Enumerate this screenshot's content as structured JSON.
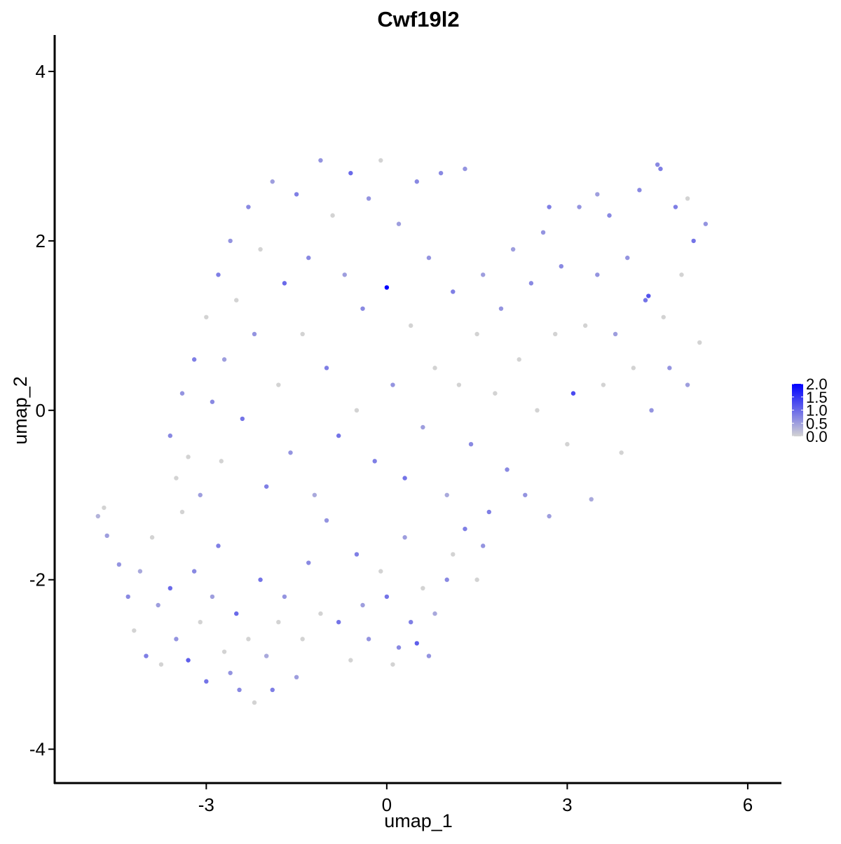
{
  "chart_data": {
    "type": "scatter",
    "title": "Cwf19l2",
    "x_label": "umap_1",
    "y_label": "umap_2",
    "x": [
      -4.8,
      -4.7,
      -4.65,
      -4.45,
      -4.3,
      -4.2,
      -4.1,
      -4.0,
      -3.9,
      -3.8,
      -3.75,
      -3.6,
      -3.5,
      -3.4,
      -3.3,
      -3.2,
      -3.1,
      -3.0,
      -2.9,
      -2.8,
      -2.7,
      -2.6,
      -2.5,
      -2.45,
      -2.3,
      -2.2,
      -2.1,
      -2.0,
      -1.9,
      -1.8,
      -1.7,
      -1.5,
      -1.4,
      -1.3,
      -1.1,
      -1.0,
      -0.8,
      -0.6,
      -0.5,
      -0.4,
      -0.3,
      -0.1,
      0.0,
      0.1,
      0.2,
      0.3,
      0.4,
      0.5,
      0.6,
      0.7,
      0.8,
      1.0,
      1.1,
      1.3,
      1.5,
      1.6,
      -3.6,
      -3.5,
      -3.4,
      -3.3,
      -3.2,
      -3.1,
      -3.0,
      -2.9,
      -2.8,
      -2.75,
      -2.7,
      -2.6,
      -2.5,
      -2.4,
      -2.3,
      -2.2,
      -2.1,
      -2.0,
      -1.9,
      -1.8,
      -1.7,
      -1.6,
      -1.5,
      -1.4,
      -1.3,
      -1.2,
      -1.1,
      -1.0,
      -0.9,
      -0.8,
      -0.7,
      -0.6,
      -0.5,
      -0.4,
      -0.3,
      -0.2,
      -0.1,
      0.0,
      0.1,
      0.2,
      0.3,
      0.4,
      0.5,
      0.6,
      0.7,
      0.8,
      0.9,
      1.0,
      1.1,
      1.2,
      1.3,
      1.4,
      1.5,
      1.6,
      1.7,
      1.8,
      1.9,
      2.0,
      2.1,
      2.2,
      2.3,
      2.4,
      2.5,
      2.6,
      2.7,
      2.8,
      2.9,
      3.0,
      3.1,
      3.2,
      3.3,
      3.4,
      3.5,
      3.6,
      3.7,
      3.8,
      3.9,
      4.0,
      4.1,
      4.2,
      4.3,
      4.4,
      4.5,
      4.6,
      4.7,
      4.8,
      4.9,
      5.0,
      5.1,
      5.2,
      5.3,
      4.35,
      4.55,
      5.0,
      3.5,
      2.7
    ],
    "y": [
      -1.25,
      -1.15,
      -1.48,
      -1.82,
      -2.2,
      -2.6,
      -1.9,
      -2.9,
      -1.5,
      -2.3,
      -3.0,
      -2.1,
      -2.7,
      -1.2,
      -2.95,
      -1.9,
      -2.5,
      -3.2,
      -2.2,
      -1.6,
      -2.85,
      -3.1,
      -2.4,
      -3.3,
      -2.7,
      -3.45,
      -2.0,
      -2.9,
      -3.3,
      -2.5,
      -2.2,
      -3.15,
      -2.7,
      -1.8,
      -2.4,
      -1.3,
      -2.5,
      -2.95,
      -1.7,
      -2.3,
      -2.7,
      -1.9,
      -2.2,
      -3.0,
      -2.8,
      -1.5,
      -2.5,
      -2.75,
      -2.1,
      -2.9,
      -2.4,
      -2.0,
      -1.7,
      -1.4,
      -2.0,
      -1.6,
      -0.3,
      -0.8,
      0.2,
      -0.55,
      0.6,
      -1.0,
      1.1,
      0.1,
      1.6,
      -0.6,
      0.6,
      2.0,
      1.3,
      -0.1,
      2.4,
      0.9,
      1.9,
      -0.9,
      2.7,
      0.3,
      1.5,
      -0.5,
      2.55,
      0.9,
      1.8,
      -1.0,
      2.95,
      0.5,
      2.3,
      -0.3,
      1.6,
      2.8,
      0.0,
      1.2,
      2.5,
      -0.6,
      2.95,
      1.45,
      0.3,
      2.2,
      -0.8,
      1.0,
      2.7,
      -0.2,
      1.8,
      0.5,
      2.8,
      -1.0,
      1.4,
      0.3,
      2.85,
      -0.4,
      0.9,
      1.6,
      -1.2,
      0.2,
      1.2,
      -0.7,
      1.9,
      0.6,
      -1.0,
      1.5,
      0.0,
      2.1,
      -1.25,
      0.9,
      1.7,
      -0.4,
      0.2,
      2.4,
      1.0,
      -1.05,
      1.6,
      0.3,
      2.3,
      0.9,
      -0.5,
      1.8,
      0.5,
      2.6,
      1.3,
      0.0,
      2.9,
      1.1,
      0.5,
      2.4,
      1.6,
      0.3,
      2.0,
      0.8,
      2.2,
      1.35,
      2.85,
      2.5,
      2.55,
      2.4
    ],
    "values": [
      0.3,
      0,
      0.5,
      0.6,
      0.7,
      0,
      0.4,
      0.8,
      0,
      0.5,
      0,
      1.0,
      0.6,
      0,
      1.1,
      0.7,
      0,
      0.9,
      0.5,
      0.8,
      0,
      0.6,
      1.0,
      0.7,
      0,
      0,
      0.9,
      0.4,
      0.8,
      0,
      0.6,
      0.5,
      0,
      0.7,
      0,
      0.6,
      0.9,
      0,
      0.8,
      0.5,
      0.6,
      0,
      0.9,
      0,
      0.7,
      0.5,
      0.8,
      1.1,
      0,
      0.6,
      0.4,
      0.7,
      0,
      0.8,
      0,
      0.6,
      0.7,
      0,
      0.6,
      0,
      0.8,
      0.5,
      0,
      0.7,
      0.8,
      0,
      0.5,
      0.6,
      0,
      0.9,
      0.7,
      0.6,
      0,
      0.8,
      0.5,
      0,
      1.0,
      0.6,
      0.8,
      0,
      0.7,
      0.4,
      0.6,
      0.8,
      0,
      0.9,
      0.5,
      1.0,
      0,
      0.7,
      0.6,
      0.8,
      0,
      2.0,
      0.6,
      0.5,
      0.9,
      0,
      0.7,
      0.5,
      0.6,
      0,
      0.7,
      0.4,
      0.8,
      0,
      0.6,
      0.7,
      0,
      0.5,
      0.8,
      0,
      0.6,
      0.7,
      0.5,
      0,
      0.6,
      0.7,
      0,
      0.6,
      0.5,
      0,
      0.7,
      0,
      1.3,
      0.6,
      0,
      0.4,
      0.6,
      0,
      0.7,
      0.5,
      0,
      0.6,
      0,
      0.7,
      0.9,
      0.6,
      0.7,
      0,
      0.6,
      0.8,
      0,
      0.5,
      0.9,
      0,
      0.6,
      1.2,
      0.8,
      0,
      0.5,
      0.8
    ],
    "color_low": "#d3d3d3",
    "color_high": "#0000ff",
    "xlim": [
      -5.52,
      6.56
    ],
    "ylim": [
      -4.4,
      4.43
    ],
    "xticks": [
      -3,
      0,
      3,
      6
    ],
    "yticks": [
      -4,
      -2,
      0,
      2,
      4
    ],
    "clim": [
      0,
      2
    ],
    "cticks": [
      {
        "value": 0,
        "label": "0.0"
      },
      0.5,
      {
        "value": 1,
        "label": "1.0"
      },
      1.5,
      {
        "value": 2,
        "label": "2.0"
      }
    ]
  }
}
